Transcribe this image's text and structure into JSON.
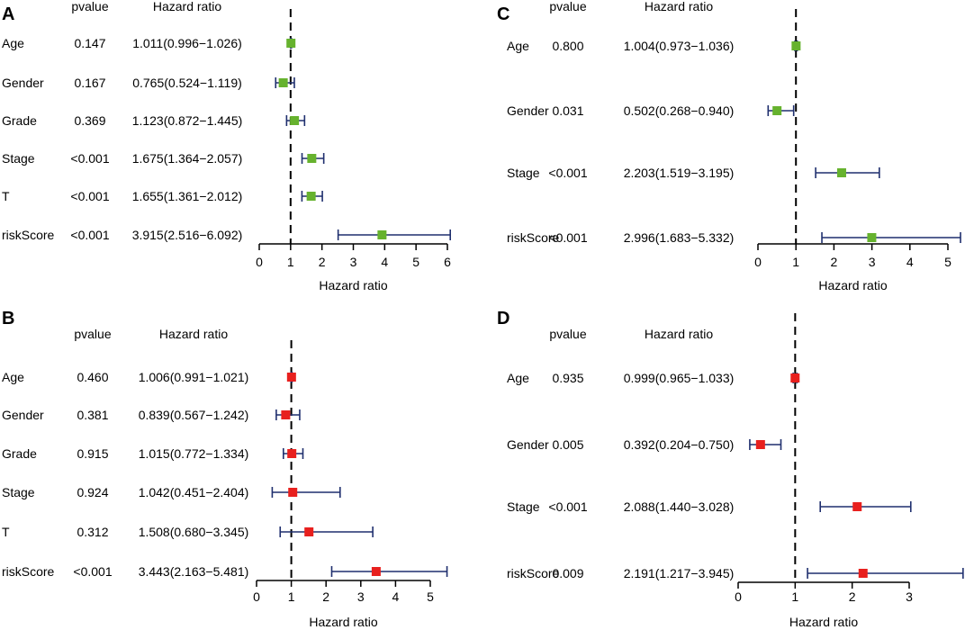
{
  "chart_data": [
    {
      "type": "forest",
      "panel": "A",
      "header_pvalue": "pvalue",
      "header_hr": "Hazard ratio",
      "xlabel": "Hazard ratio",
      "xlim": [
        0,
        6
      ],
      "ticks": [
        "0",
        "1",
        "2",
        "3",
        "4",
        "5",
        "6"
      ],
      "reference": 1,
      "marker_color": "#66b22e",
      "rows": [
        {
          "name": "Age",
          "pvalue": "0.147",
          "hr_text": "1.011(0.996−1.026)",
          "hr": 1.011,
          "low": 0.996,
          "high": 1.026
        },
        {
          "name": "Gender",
          "pvalue": "0.167",
          "hr_text": "0.765(0.524−1.119)",
          "hr": 0.765,
          "low": 0.524,
          "high": 1.119
        },
        {
          "name": "Grade",
          "pvalue": "0.369",
          "hr_text": "1.123(0.872−1.445)",
          "hr": 1.123,
          "low": 0.872,
          "high": 1.445
        },
        {
          "name": "Stage",
          "pvalue": "<0.001",
          "hr_text": "1.675(1.364−2.057)",
          "hr": 1.675,
          "low": 1.364,
          "high": 2.057
        },
        {
          "name": "T",
          "pvalue": "<0.001",
          "hr_text": "1.655(1.361−2.012)",
          "hr": 1.655,
          "low": 1.361,
          "high": 2.012
        },
        {
          "name": "riskScore",
          "pvalue": "<0.001",
          "hr_text": "3.915(2.516−6.092)",
          "hr": 3.915,
          "low": 2.516,
          "high": 6.092
        }
      ]
    },
    {
      "type": "forest",
      "panel": "B",
      "header_pvalue": "pvalue",
      "header_hr": "Hazard ratio",
      "xlabel": "Hazard ratio",
      "xlim": [
        0,
        5
      ],
      "ticks": [
        "0",
        "1",
        "2",
        "3",
        "4",
        "5"
      ],
      "reference": 1,
      "marker_color": "#e8201e",
      "rows": [
        {
          "name": "Age",
          "pvalue": "0.460",
          "hr_text": "1.006(0.991−1.021)",
          "hr": 1.006,
          "low": 0.991,
          "high": 1.021
        },
        {
          "name": "Gender",
          "pvalue": "0.381",
          "hr_text": "0.839(0.567−1.242)",
          "hr": 0.839,
          "low": 0.567,
          "high": 1.242
        },
        {
          "name": "Grade",
          "pvalue": "0.915",
          "hr_text": "1.015(0.772−1.334)",
          "hr": 1.015,
          "low": 0.772,
          "high": 1.334
        },
        {
          "name": "Stage",
          "pvalue": "0.924",
          "hr_text": "1.042(0.451−2.404)",
          "hr": 1.042,
          "low": 0.451,
          "high": 2.404
        },
        {
          "name": "T",
          "pvalue": "0.312",
          "hr_text": "1.508(0.680−3.345)",
          "hr": 1.508,
          "low": 0.68,
          "high": 3.345
        },
        {
          "name": "riskScore",
          "pvalue": "<0.001",
          "hr_text": "3.443(2.163−5.481)",
          "hr": 3.443,
          "low": 2.163,
          "high": 5.481
        }
      ]
    },
    {
      "type": "forest",
      "panel": "C",
      "header_pvalue": "pvalue",
      "header_hr": "Hazard ratio",
      "xlabel": "Hazard ratio",
      "xlim": [
        0,
        5
      ],
      "ticks": [
        "0",
        "1",
        "2",
        "3",
        "4",
        "5"
      ],
      "reference": 1,
      "marker_color": "#66b22e",
      "rows": [
        {
          "name": "Age",
          "pvalue": "0.800",
          "hr_text": "1.004(0.973−1.036)",
          "hr": 1.004,
          "low": 0.973,
          "high": 1.036
        },
        {
          "name": "Gender",
          "pvalue": "0.031",
          "hr_text": "0.502(0.268−0.940)",
          "hr": 0.502,
          "low": 0.268,
          "high": 0.94
        },
        {
          "name": "Stage",
          "pvalue": "<0.001",
          "hr_text": "2.203(1.519−3.195)",
          "hr": 2.203,
          "low": 1.519,
          "high": 3.195
        },
        {
          "name": "riskScore",
          "pvalue": "<0.001",
          "hr_text": "2.996(1.683−5.332)",
          "hr": 2.996,
          "low": 1.683,
          "high": 5.332
        }
      ]
    },
    {
      "type": "forest",
      "panel": "D",
      "header_pvalue": "pvalue",
      "header_hr": "Hazard ratio",
      "xlabel": "Hazard ratio",
      "xlim": [
        0,
        3
      ],
      "ticks": [
        "0",
        "1",
        "2",
        "3"
      ],
      "reference": 1,
      "marker_color": "#e8201e",
      "rows": [
        {
          "name": "Age",
          "pvalue": "0.935",
          "hr_text": "0.999(0.965−1.033)",
          "hr": 0.999,
          "low": 0.965,
          "high": 1.033
        },
        {
          "name": "Gender",
          "pvalue": "0.005",
          "hr_text": "0.392(0.204−0.750)",
          "hr": 0.392,
          "low": 0.204,
          "high": 0.75
        },
        {
          "name": "Stage",
          "pvalue": "<0.001",
          "hr_text": "2.088(1.440−3.028)",
          "hr": 2.088,
          "low": 1.44,
          "high": 3.028
        },
        {
          "name": "riskScore",
          "pvalue": "0.009",
          "hr_text": "2.191(1.217−3.945)",
          "hr": 2.191,
          "low": 1.217,
          "high": 3.945
        }
      ]
    }
  ],
  "ci_color": "#1f2f6e"
}
